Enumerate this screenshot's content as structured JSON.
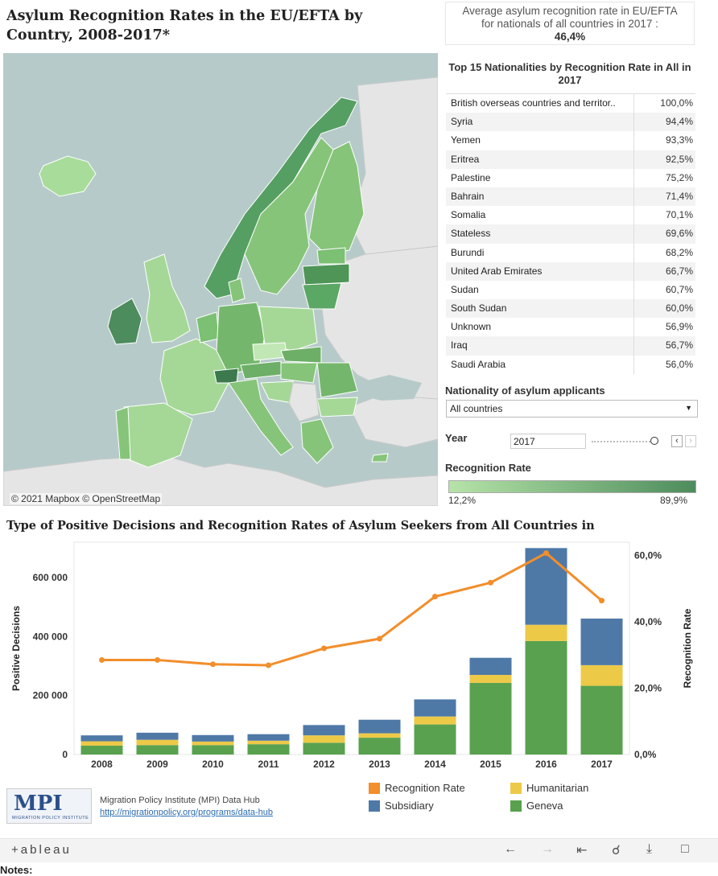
{
  "header": {
    "title": "Asylum Recognition Rates in the EU/EFTA by Country, 2008-2017*",
    "avg_line1": "Average asylum recognition rate in EU/EFTA",
    "avg_line2": "for nationals of all countries in 2017 :",
    "avg_value": "46,4%"
  },
  "map": {
    "attribution": "© 2021 Mapbox © OpenStreetMap",
    "colors": {
      "water": "#b6cbc9",
      "land_nodata": "#e5e5e5",
      "low": "#b6e3a8",
      "high": "#4d8c5d"
    }
  },
  "top15": {
    "title": "Top 15 Nationalities by Recognition Rate in All in 2017",
    "rows": [
      {
        "name": "British overseas countries and territor..",
        "value": "100,0%"
      },
      {
        "name": "Syria",
        "value": "94,4%"
      },
      {
        "name": "Yemen",
        "value": "93,3%"
      },
      {
        "name": "Eritrea",
        "value": "92,5%"
      },
      {
        "name": "Palestine",
        "value": "75,2%"
      },
      {
        "name": "Bahrain",
        "value": "71,4%"
      },
      {
        "name": "Somalia",
        "value": "70,1%"
      },
      {
        "name": "Stateless",
        "value": "69,6%"
      },
      {
        "name": "Burundi",
        "value": "68,2%"
      },
      {
        "name": "United Arab Emirates",
        "value": "66,7%"
      },
      {
        "name": "Sudan",
        "value": "60,7%"
      },
      {
        "name": "South Sudan",
        "value": "60,0%"
      },
      {
        "name": "Unknown",
        "value": "56,9%"
      },
      {
        "name": "Iraq",
        "value": "56,7%"
      },
      {
        "name": "Saudi Arabia",
        "value": "56,0%"
      }
    ]
  },
  "filters": {
    "nationality_label": "Nationality of asylum applicants",
    "nationality_value": "All countries",
    "year_label": "Year",
    "year_value": "2017",
    "rr_label": "Recognition Rate",
    "rr_min": "12,2%",
    "rr_max": "89,9%"
  },
  "chart_title": "Type of Positive Decisions and Recognition Rates of Asylum Seekers from All Countries in",
  "chart_data": {
    "type": "bar",
    "categories": [
      "2008",
      "2009",
      "2010",
      "2011",
      "2012",
      "2013",
      "2014",
      "2015",
      "2016",
      "2017"
    ],
    "series": [
      {
        "name": "Geneva",
        "color": "#59a14f",
        "values": [
          30000,
          32000,
          32000,
          35000,
          40000,
          57000,
          102000,
          243000,
          385000,
          233000
        ]
      },
      {
        "name": "Humanitarian",
        "color": "#edc948",
        "values": [
          15000,
          18000,
          12000,
          12000,
          25000,
          15000,
          27000,
          27000,
          55000,
          70000
        ]
      },
      {
        "name": "Subsidiary",
        "color": "#4e79a7",
        "values": [
          20000,
          24000,
          22000,
          22000,
          35000,
          46000,
          58000,
          58000,
          260000,
          158000
        ]
      },
      {
        "name": "Recognition Rate",
        "color": "#f28e2b",
        "type": "line",
        "axis": "right",
        "values": [
          28.5,
          28.5,
          27.2,
          26.9,
          32,
          34.9,
          47.6,
          51.8,
          60.7,
          46.4
        ]
      }
    ],
    "ylabel": "Positive Decisions",
    "y2label": "Recognition Rate",
    "ylim": [
      0,
      720000
    ],
    "y2lim": [
      0,
      64
    ],
    "yticks": [
      "0",
      "200 000",
      "400 000",
      "600 000"
    ],
    "y2ticks": [
      "0,0%",
      "20,0%",
      "40,0%",
      "60,0%"
    ]
  },
  "legend": {
    "items": [
      {
        "label": "Recognition Rate",
        "color": "#f28e2b"
      },
      {
        "label": "Humanitarian",
        "color": "#edc948"
      },
      {
        "label": "Subsidiary",
        "color": "#4e79a7"
      },
      {
        "label": "Geneva",
        "color": "#59a14f"
      }
    ]
  },
  "footer": {
    "mpi_logo": "MPI",
    "mpi_logo_sub": "MIGRATION POLICY INSTITUTE",
    "mpi_name": "Migration Policy Institute (MPI) Data Hub",
    "mpi_link": "http://migrationpolicy.org/programs/data-hub",
    "tableau": "+ableau",
    "notes": "Notes:"
  }
}
